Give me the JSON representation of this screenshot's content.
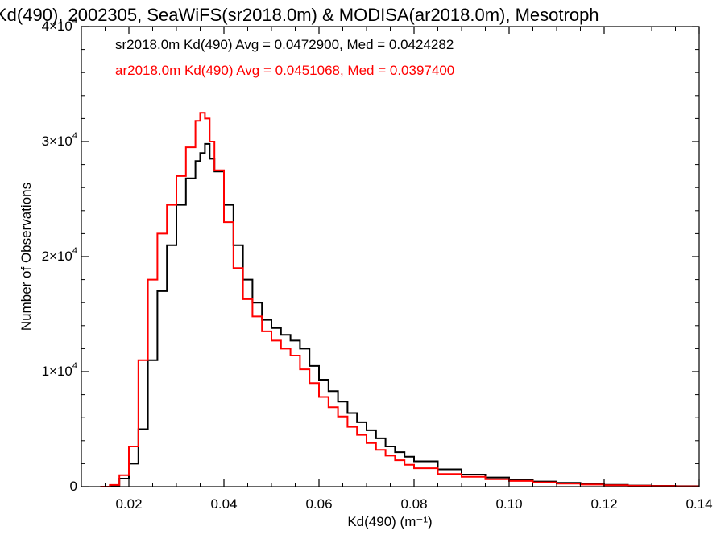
{
  "chart_data": {
    "type": "line",
    "title": "Kd(490), 2002305, SeaWiFS(sr2018.0m) & MODISA(ar2018.0m), Mesotroph",
    "xlabel": "Kd(490) (m⁻¹)",
    "ylabel": "Number of Observations",
    "xlim": [
      0.01,
      0.14
    ],
    "ylim": [
      0,
      40000
    ],
    "x_ticks": [
      "0.02",
      "0.04",
      "0.06",
      "0.08",
      "0.10",
      "0.12",
      "0.14"
    ],
    "y_ticks": [
      {
        "base": "0",
        "exp": ""
      },
      {
        "base": "1×10",
        "exp": "4"
      },
      {
        "base": "2×10",
        "exp": "4"
      },
      {
        "base": "3×10",
        "exp": "4"
      },
      {
        "base": "4×10",
        "exp": "4"
      }
    ],
    "grid": false,
    "annotations": [
      {
        "text": "sr2018.0m Kd(490) Avg = 0.0472900, Med = 0.0424282",
        "color": "#000000"
      },
      {
        "text": "ar2018.0m Kd(490) Avg = 0.0451068, Med = 0.0397400",
        "color": "#ff0000"
      }
    ],
    "series": [
      {
        "color": "#000000",
        "x": [
          0.014,
          0.016,
          0.018,
          0.02,
          0.022,
          0.024,
          0.026,
          0.028,
          0.03,
          0.032,
          0.034,
          0.035,
          0.036,
          0.037,
          0.038,
          0.04,
          0.042,
          0.044,
          0.046,
          0.048,
          0.05,
          0.052,
          0.054,
          0.056,
          0.058,
          0.06,
          0.062,
          0.064,
          0.066,
          0.068,
          0.07,
          0.072,
          0.074,
          0.076,
          0.078,
          0.08,
          0.085,
          0.09,
          0.095,
          0.1,
          0.105,
          0.11,
          0.115,
          0.12,
          0.125,
          0.13,
          0.135,
          0.14
        ],
        "y": [
          0,
          100,
          700,
          2000,
          5000,
          11000,
          17000,
          21000,
          24500,
          26800,
          28300,
          29000,
          29800,
          28500,
          27400,
          24500,
          21000,
          18000,
          16000,
          14500,
          13800,
          13200,
          12700,
          12000,
          10500,
          9300,
          8300,
          7400,
          6400,
          5600,
          4900,
          4200,
          3500,
          3000,
          2600,
          2200,
          1500,
          1050,
          800,
          600,
          450,
          330,
          230,
          160,
          100,
          70,
          40,
          20
        ]
      },
      {
        "color": "#ff0000",
        "x": [
          0.014,
          0.016,
          0.018,
          0.02,
          0.022,
          0.024,
          0.026,
          0.028,
          0.03,
          0.032,
          0.034,
          0.035,
          0.036,
          0.037,
          0.038,
          0.04,
          0.042,
          0.044,
          0.046,
          0.048,
          0.05,
          0.052,
          0.054,
          0.056,
          0.058,
          0.06,
          0.062,
          0.064,
          0.066,
          0.068,
          0.07,
          0.072,
          0.074,
          0.076,
          0.078,
          0.08,
          0.085,
          0.09,
          0.095,
          0.1,
          0.105,
          0.11,
          0.115,
          0.12,
          0.125,
          0.13,
          0.135,
          0.14
        ],
        "y": [
          0,
          150,
          1000,
          3500,
          11000,
          18000,
          22000,
          24500,
          27000,
          29500,
          31800,
          32500,
          32000,
          30000,
          27500,
          23000,
          19000,
          16300,
          14800,
          13500,
          12700,
          12000,
          11400,
          10200,
          9000,
          7800,
          6900,
          6100,
          5200,
          4500,
          3800,
          3200,
          2700,
          2300,
          1900,
          1600,
          1100,
          850,
          650,
          500,
          370,
          260,
          180,
          120,
          80,
          50,
          30,
          15
        ]
      }
    ]
  }
}
